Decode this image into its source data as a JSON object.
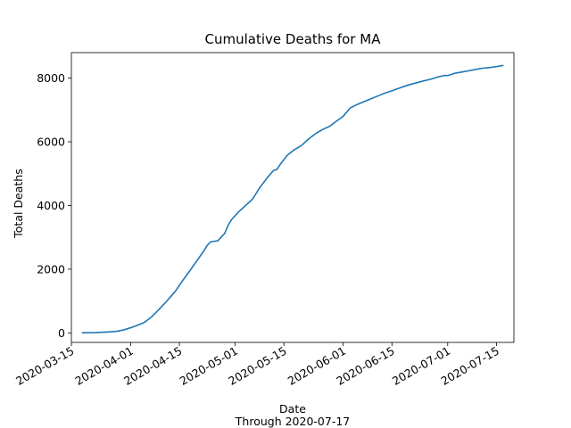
{
  "chart_data": {
    "type": "line",
    "title": "Cumulative Deaths for MA",
    "xlabel": "Date",
    "xlabel_sub": "Through 2020-07-17",
    "ylabel": "Total Deaths",
    "xlim": [
      "2020-03-15",
      "2020-07-20"
    ],
    "ylim": [
      -300,
      8800
    ],
    "x_ticks": [
      "2020-03-15",
      "2020-04-01",
      "2020-04-15",
      "2020-05-01",
      "2020-05-15",
      "2020-06-01",
      "2020-06-15",
      "2020-07-01",
      "2020-07-15"
    ],
    "y_ticks": [
      0,
      2000,
      4000,
      6000,
      8000
    ],
    "grid": false,
    "line_color": "#1f77b4",
    "series": [
      {
        "x": [
          "2020-03-18",
          "2020-03-22",
          "2020-03-25",
          "2020-03-28",
          "2020-03-30",
          "2020-04-01",
          "2020-04-03",
          "2020-04-05",
          "2020-04-07",
          "2020-04-09",
          "2020-04-11",
          "2020-04-13",
          "2020-04-14",
          "2020-04-16",
          "2020-04-18",
          "2020-04-20",
          "2020-04-22",
          "2020-04-23",
          "2020-04-24",
          "2020-04-26",
          "2020-04-28",
          "2020-04-29",
          "2020-04-30",
          "2020-05-02",
          "2020-05-03",
          "2020-05-04",
          "2020-05-05",
          "2020-05-06",
          "2020-05-08",
          "2020-05-10",
          "2020-05-12",
          "2020-05-13",
          "2020-05-14",
          "2020-05-16",
          "2020-05-18",
          "2020-05-20",
          "2020-05-22",
          "2020-05-24",
          "2020-05-26",
          "2020-05-28",
          "2020-05-30",
          "2020-05-31",
          "2020-06-01",
          "2020-06-03",
          "2020-06-05",
          "2020-06-07",
          "2020-06-09",
          "2020-06-11",
          "2020-06-13",
          "2020-06-15",
          "2020-06-16",
          "2020-06-18",
          "2020-06-20",
          "2020-06-22",
          "2020-06-24",
          "2020-06-26",
          "2020-06-28",
          "2020-06-30",
          "2020-07-01",
          "2020-07-03",
          "2020-07-05",
          "2020-07-07",
          "2020-07-09",
          "2020-07-11",
          "2020-07-13",
          "2020-07-15",
          "2020-07-17"
        ],
        "y": [
          2,
          9,
          25,
          48,
          90,
          160,
          240,
          330,
          500,
          720,
          950,
          1200,
          1330,
          1650,
          1950,
          2260,
          2570,
          2750,
          2860,
          2890,
          3120,
          3380,
          3560,
          3800,
          3900,
          4000,
          4100,
          4200,
          4550,
          4840,
          5100,
          5130,
          5300,
          5580,
          5750,
          5880,
          6080,
          6250,
          6380,
          6480,
          6640,
          6720,
          6800,
          7060,
          7170,
          7260,
          7350,
          7440,
          7530,
          7600,
          7640,
          7720,
          7790,
          7850,
          7910,
          7960,
          8030,
          8080,
          8080,
          8150,
          8190,
          8230,
          8270,
          8310,
          8330,
          8360,
          8400
        ]
      }
    ]
  }
}
